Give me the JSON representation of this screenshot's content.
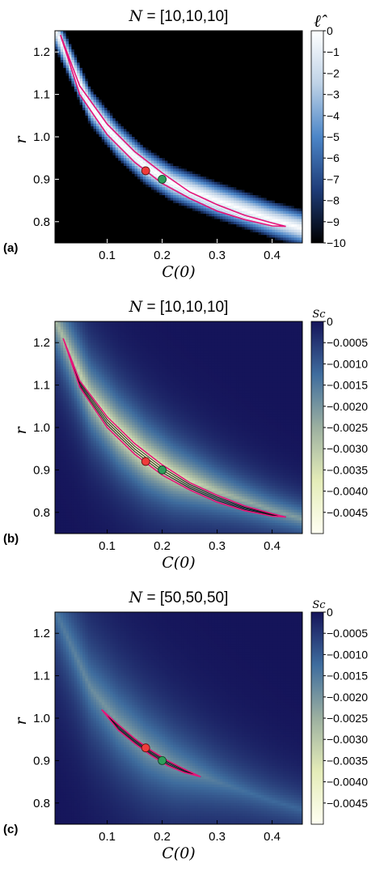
{
  "chart_data": [
    {
      "type": "heatmap",
      "panel_label": "(a)",
      "title_var": "N",
      "title_rest": " = [10,10,10]",
      "xlabel": "C(0)",
      "ylabel": "r",
      "xlim": [
        0.005,
        0.455
      ],
      "ylim": [
        0.75,
        1.25
      ],
      "xticks": [
        "0.1",
        "0.2",
        "0.3",
        "0.4"
      ],
      "xtick_values": [
        0.1,
        0.2,
        0.3,
        0.4
      ],
      "yticks": [
        "0.8",
        "0.9",
        "1.0",
        "1.1",
        "1.2"
      ],
      "ytick_values": [
        0.8,
        0.9,
        1.0,
        1.1,
        1.2
      ],
      "colorbar": {
        "label": "ℓ̂",
        "min": -10,
        "max": 0,
        "ticks": [
          "0",
          "−1",
          "−2",
          "−3",
          "−4",
          "−5",
          "−6",
          "−7",
          "−8",
          "−9",
          "−10"
        ],
        "tick_values": [
          0,
          -1,
          -2,
          -3,
          -4,
          -5,
          -6,
          -7,
          -8,
          -9,
          -10
        ],
        "colors": [
          "#000000",
          "#1e3c78",
          "#4c86c8",
          "#bed2e6",
          "#ffffff"
        ]
      },
      "background": "#000000",
      "ridge": {
        "x": [
          0.01,
          0.07,
          0.12,
          0.17,
          0.22,
          0.3,
          0.4,
          0.44
        ],
        "y": [
          1.24,
          1.07,
          0.99,
          0.93,
          0.89,
          0.85,
          0.805,
          0.79
        ]
      },
      "contour_color": "#e6157a",
      "contour_outer": {
        "upper": {
          "x": [
            0.015,
            0.05,
            0.1,
            0.15,
            0.2,
            0.25,
            0.3,
            0.35,
            0.4,
            0.425
          ],
          "y": [
            1.24,
            1.12,
            1.03,
            0.965,
            0.915,
            0.87,
            0.84,
            0.815,
            0.797,
            0.789
          ]
        },
        "lower": {
          "x": [
            0.015,
            0.05,
            0.1,
            0.15,
            0.2,
            0.25,
            0.3,
            0.35,
            0.4,
            0.425
          ],
          "y": [
            1.24,
            1.1,
            1.005,
            0.94,
            0.89,
            0.855,
            0.825,
            0.805,
            0.79,
            0.789
          ]
        }
      },
      "red_point": {
        "x": 0.17,
        "y": 0.92,
        "color": "#ef3b3b"
      },
      "green_point": {
        "x": 0.2,
        "y": 0.9,
        "color": "#2e9e5b"
      }
    },
    {
      "type": "heatmap",
      "panel_label": "(b)",
      "title_var": "N",
      "title_rest": " = [10,10,10]",
      "xlabel": "C(0)",
      "ylabel": "r",
      "xlim": [
        0.005,
        0.455
      ],
      "ylim": [
        0.75,
        1.25
      ],
      "xticks": [
        "0.1",
        "0.2",
        "0.3",
        "0.4"
      ],
      "xtick_values": [
        0.1,
        0.2,
        0.3,
        0.4
      ],
      "yticks": [
        "0.8",
        "0.9",
        "1.0",
        "1.1",
        "1.2"
      ],
      "ytick_values": [
        0.8,
        0.9,
        1.0,
        1.1,
        1.2
      ],
      "colorbar": {
        "label": "Sc",
        "min": -0.005,
        "max": 0,
        "ticks": [
          "0",
          "−0.0005",
          "−0.0010",
          "−0.0015",
          "−0.0020",
          "−0.0025",
          "−0.0030",
          "−0.0035",
          "−0.0040",
          "−0.0045"
        ],
        "tick_values": [
          0,
          -0.0005,
          -0.001,
          -0.0015,
          -0.002,
          -0.0025,
          -0.003,
          -0.0035,
          -0.004,
          -0.0045
        ],
        "colors": [
          "#fffff2",
          "#e4ecb8",
          "#9cb0a0",
          "#3f6d9e",
          "#15145a"
        ]
      },
      "ridge": {
        "x": [
          0.01,
          0.07,
          0.12,
          0.17,
          0.22,
          0.3,
          0.4,
          0.44
        ],
        "y": [
          1.24,
          1.07,
          0.99,
          0.93,
          0.89,
          0.85,
          0.805,
          0.79
        ]
      },
      "contour_color": "#e6157a",
      "contour_outer": {
        "upper": {
          "x": [
            0.02,
            0.05,
            0.1,
            0.15,
            0.2,
            0.25,
            0.3,
            0.35,
            0.4,
            0.425
          ],
          "y": [
            1.21,
            1.11,
            1.025,
            0.962,
            0.912,
            0.87,
            0.84,
            0.815,
            0.797,
            0.789
          ]
        },
        "lower": {
          "x": [
            0.02,
            0.05,
            0.1,
            0.15,
            0.2,
            0.25,
            0.3,
            0.35,
            0.4,
            0.425
          ],
          "y": [
            1.21,
            1.095,
            1.0,
            0.937,
            0.888,
            0.853,
            0.824,
            0.804,
            0.791,
            0.789
          ]
        }
      },
      "red_point": {
        "x": 0.17,
        "y": 0.92,
        "color": "#ef3b3b"
      },
      "green_point": {
        "x": 0.2,
        "y": 0.9,
        "color": "#2e9e5b"
      }
    },
    {
      "type": "heatmap",
      "panel_label": "(c)",
      "title_var": "N",
      "title_rest": " = [50,50,50]",
      "xlabel": "C(0)",
      "ylabel": "r",
      "xlim": [
        0.005,
        0.455
      ],
      "ylim": [
        0.75,
        1.25
      ],
      "xticks": [
        "0.1",
        "0.2",
        "0.3",
        "0.4"
      ],
      "xtick_values": [
        0.1,
        0.2,
        0.3,
        0.4
      ],
      "yticks": [
        "0.8",
        "0.9",
        "1.0",
        "1.1",
        "1.2"
      ],
      "ytick_values": [
        0.8,
        0.9,
        1.0,
        1.1,
        1.2
      ],
      "colorbar": {
        "label": "Sc",
        "min": -0.005,
        "max": 0,
        "ticks": [
          "0",
          "−0.0005",
          "−0.0010",
          "−0.0015",
          "−0.0020",
          "−0.0025",
          "−0.0030",
          "−0.0035",
          "−0.0040",
          "−0.0045"
        ],
        "tick_values": [
          0,
          -0.0005,
          -0.001,
          -0.0015,
          -0.002,
          -0.0025,
          -0.003,
          -0.0035,
          -0.004,
          -0.0045
        ],
        "colors": [
          "#fffff2",
          "#e4ecb8",
          "#9cb0a0",
          "#3f6d9e",
          "#15145a"
        ]
      },
      "ridge": {
        "x": [
          0.01,
          0.07,
          0.12,
          0.17,
          0.22,
          0.3,
          0.4,
          0.44
        ],
        "y": [
          1.24,
          1.07,
          0.99,
          0.93,
          0.89,
          0.85,
          0.805,
          0.79
        ]
      },
      "contour_color": "#e6157a",
      "contour_outer": {
        "upper": {
          "x": [
            0.09,
            0.12,
            0.15,
            0.18,
            0.21,
            0.24,
            0.27
          ],
          "y": [
            1.02,
            0.985,
            0.952,
            0.924,
            0.9,
            0.88,
            0.862
          ]
        },
        "lower": {
          "x": [
            0.09,
            0.12,
            0.15,
            0.18,
            0.21,
            0.24,
            0.27
          ],
          "y": [
            1.02,
            0.972,
            0.94,
            0.912,
            0.888,
            0.872,
            0.862
          ]
        }
      },
      "red_point": {
        "x": 0.17,
        "y": 0.93,
        "color": "#ef3b3b"
      },
      "green_point": {
        "x": 0.2,
        "y": 0.9,
        "color": "#2e9e5b"
      }
    }
  ]
}
